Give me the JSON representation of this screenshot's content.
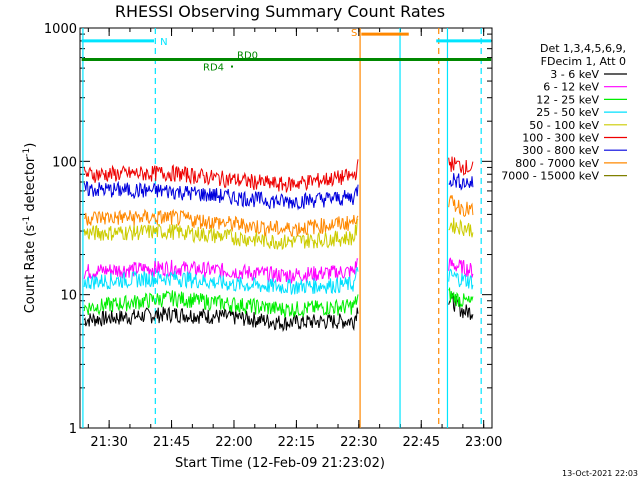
{
  "chart_data": {
    "type": "line",
    "title": "RHESSI Observing Summary Count Rates",
    "xlabel": "Start Time (12-Feb-09 21:23:02)",
    "ylabel_main": "Count Rate (s",
    "ylabel_sup1": "-1",
    "ylabel_mid": " detector",
    "ylabel_sup2": "-1",
    "ylabel_end": ")",
    "yscale": "log",
    "ylim": [
      1,
      1000
    ],
    "xlim": [
      "21:23",
      "23:02"
    ],
    "x_ticks": [
      "21:30",
      "21:45",
      "22:00",
      "22:15",
      "22:30",
      "22:45",
      "23:00"
    ],
    "y_ticks": [
      "1",
      "10",
      "100",
      "1000"
    ],
    "timestamp": "13-Oct-2021 22:03",
    "legend_header": [
      "Det 1,3,4,5,6,9,",
      "FDecim 1, Att 0"
    ],
    "series": [
      {
        "name": "3 - 6 keV",
        "color": "#000000",
        "first": [
          [
            21.4,
            6.5
          ],
          [
            21.75,
            7.2
          ],
          [
            22.0,
            6.8
          ],
          [
            22.2,
            6.2
          ],
          [
            22.48,
            6.4
          ],
          [
            22.5,
            8.5
          ]
        ],
        "second": [
          [
            22.86,
            9.5
          ],
          [
            22.92,
            7.5
          ],
          [
            22.96,
            7.5
          ]
        ]
      },
      {
        "name": "6 - 12 keV",
        "color": "#ff00ff",
        "first": [
          [
            21.4,
            15
          ],
          [
            21.75,
            16
          ],
          [
            22.0,
            15
          ],
          [
            22.2,
            14
          ],
          [
            22.48,
            15
          ],
          [
            22.5,
            19
          ]
        ],
        "second": [
          [
            22.86,
            17
          ],
          [
            22.92,
            16
          ],
          [
            22.96,
            15
          ]
        ]
      },
      {
        "name": "12 - 25 keV",
        "color": "#00ee00",
        "first": [
          [
            21.4,
            8
          ],
          [
            21.75,
            9.5
          ],
          [
            22.0,
            8.5
          ],
          [
            22.2,
            7.8
          ],
          [
            22.48,
            8.2
          ],
          [
            22.5,
            10
          ]
        ],
        "second": [
          [
            22.86,
            10
          ],
          [
            22.92,
            9
          ],
          [
            22.96,
            8.5
          ]
        ]
      },
      {
        "name": "25 - 50 keV",
        "color": "#00e0ff",
        "first": [
          [
            21.4,
            12.5
          ],
          [
            21.75,
            13.5
          ],
          [
            22.0,
            12
          ],
          [
            22.2,
            11.5
          ],
          [
            22.48,
            12
          ],
          [
            22.5,
            16
          ]
        ],
        "second": [
          [
            22.86,
            14
          ],
          [
            22.92,
            13
          ],
          [
            22.96,
            12.5
          ]
        ]
      },
      {
        "name": "50 - 100 keV",
        "color": "#cccc00",
        "first": [
          [
            21.4,
            29
          ],
          [
            21.75,
            30
          ],
          [
            22.0,
            27
          ],
          [
            22.2,
            25
          ],
          [
            22.48,
            27
          ],
          [
            22.5,
            35
          ]
        ],
        "second": [
          [
            22.86,
            34
          ],
          [
            22.92,
            32
          ],
          [
            22.96,
            31
          ]
        ]
      },
      {
        "name": "100 - 300 keV",
        "color": "#ee0000",
        "first": [
          [
            21.4,
            80
          ],
          [
            21.75,
            82
          ],
          [
            22.0,
            73
          ],
          [
            22.2,
            67
          ],
          [
            22.48,
            78
          ],
          [
            22.5,
            95
          ]
        ],
        "second": [
          [
            22.86,
            98
          ],
          [
            22.92,
            92
          ],
          [
            22.96,
            88
          ]
        ]
      },
      {
        "name": "300 - 800 keV",
        "color": "#0000dd",
        "first": [
          [
            21.4,
            62
          ],
          [
            21.75,
            60
          ],
          [
            22.0,
            54
          ],
          [
            22.2,
            50
          ],
          [
            22.48,
            54
          ],
          [
            22.5,
            65
          ]
        ],
        "second": [
          [
            22.86,
            75
          ],
          [
            22.92,
            70
          ],
          [
            22.96,
            68
          ]
        ]
      },
      {
        "name": "800 - 7000 keV",
        "color": "#ff8800",
        "first": [
          [
            21.4,
            38
          ],
          [
            21.75,
            38
          ],
          [
            22.0,
            34
          ],
          [
            22.2,
            31
          ],
          [
            22.48,
            35
          ],
          [
            22.5,
            45
          ]
        ],
        "second": [
          [
            22.86,
            50
          ],
          [
            22.92,
            45
          ],
          [
            22.96,
            42
          ]
        ]
      },
      {
        "name": "7000 - 15000 keV",
        "color": "#808000",
        "first": [],
        "second": []
      }
    ],
    "flag_bars": [
      {
        "label": "N",
        "color": "#00e5ff",
        "y": 800,
        "x_start": 21.39,
        "x_end": 21.68
      },
      {
        "label": "",
        "color": "#00e5ff",
        "y": 800,
        "x_start": 22.81,
        "x_end": 23.03
      },
      {
        "label": "S",
        "color": "#ff8800",
        "y": 900,
        "x_start": 22.51,
        "x_end": 22.7
      },
      {
        "label": "RD0",
        "color": "#008800",
        "y": 580,
        "x_start": 21.39,
        "x_end": 23.03
      }
    ],
    "annotations": [
      {
        "text": "RD4",
        "color": "#008800"
      }
    ],
    "vertical_lines": [
      {
        "x": 21.395,
        "color": "#00e5ff",
        "style": "solid"
      },
      {
        "x": 21.685,
        "color": "#00e5ff",
        "style": "dashed"
      },
      {
        "x": 22.505,
        "color": "#ff8800",
        "style": "solid"
      },
      {
        "x": 22.665,
        "color": "#00e5ff",
        "style": "solid"
      },
      {
        "x": 22.82,
        "color": "#ff8800",
        "style": "dashed"
      },
      {
        "x": 22.855,
        "color": "#00e5ff",
        "style": "solid"
      },
      {
        "x": 22.99,
        "color": "#00e5ff",
        "style": "dashed"
      }
    ]
  }
}
